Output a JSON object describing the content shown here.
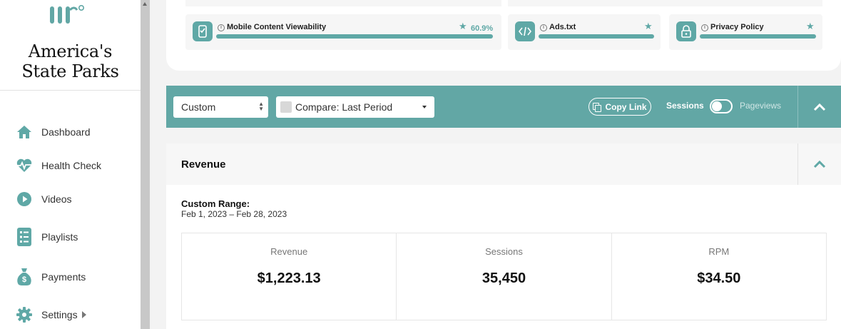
{
  "sidebar": {
    "brand": "America's State Parks",
    "items": [
      {
        "label": "Dashboard",
        "icon": "home-icon"
      },
      {
        "label": "Health Check",
        "icon": "heartbeat-icon"
      },
      {
        "label": "Videos",
        "icon": "play-icon"
      },
      {
        "label": "Playlists",
        "icon": "checklist-icon"
      },
      {
        "label": "Payments",
        "icon": "money-bag-icon"
      },
      {
        "label": "Settings",
        "icon": "gear-icon"
      }
    ]
  },
  "health_tiles": [
    {
      "title": "Mobile Content Viewability",
      "icon": "mobile-icon",
      "value": "60.9%",
      "fill": 1.0
    },
    {
      "title": "Ads.txt",
      "icon": "code-icon",
      "fill": 1.0
    },
    {
      "title": "Privacy Policy",
      "icon": "lock-icon",
      "fill": 1.0
    }
  ],
  "filters": {
    "range": "Custom",
    "compare": "Compare: Last Period",
    "copy_link": "Copy Link",
    "toggle_on": "Sessions",
    "toggle_off": "Pageviews"
  },
  "revenue": {
    "title": "Revenue",
    "range_label": "Custom Range:",
    "range_dates": "Feb 1, 2023 – Feb 28, 2023",
    "stats": [
      {
        "label": "Revenue",
        "value": "$1,223.13"
      },
      {
        "label": "Sessions",
        "value": "35,450"
      },
      {
        "label": "RPM",
        "value": "$34.50"
      }
    ]
  },
  "colors": {
    "accent": "#62a7a5",
    "sidebar_bg": "#ffffff",
    "page_bg": "#f3f3f3"
  }
}
